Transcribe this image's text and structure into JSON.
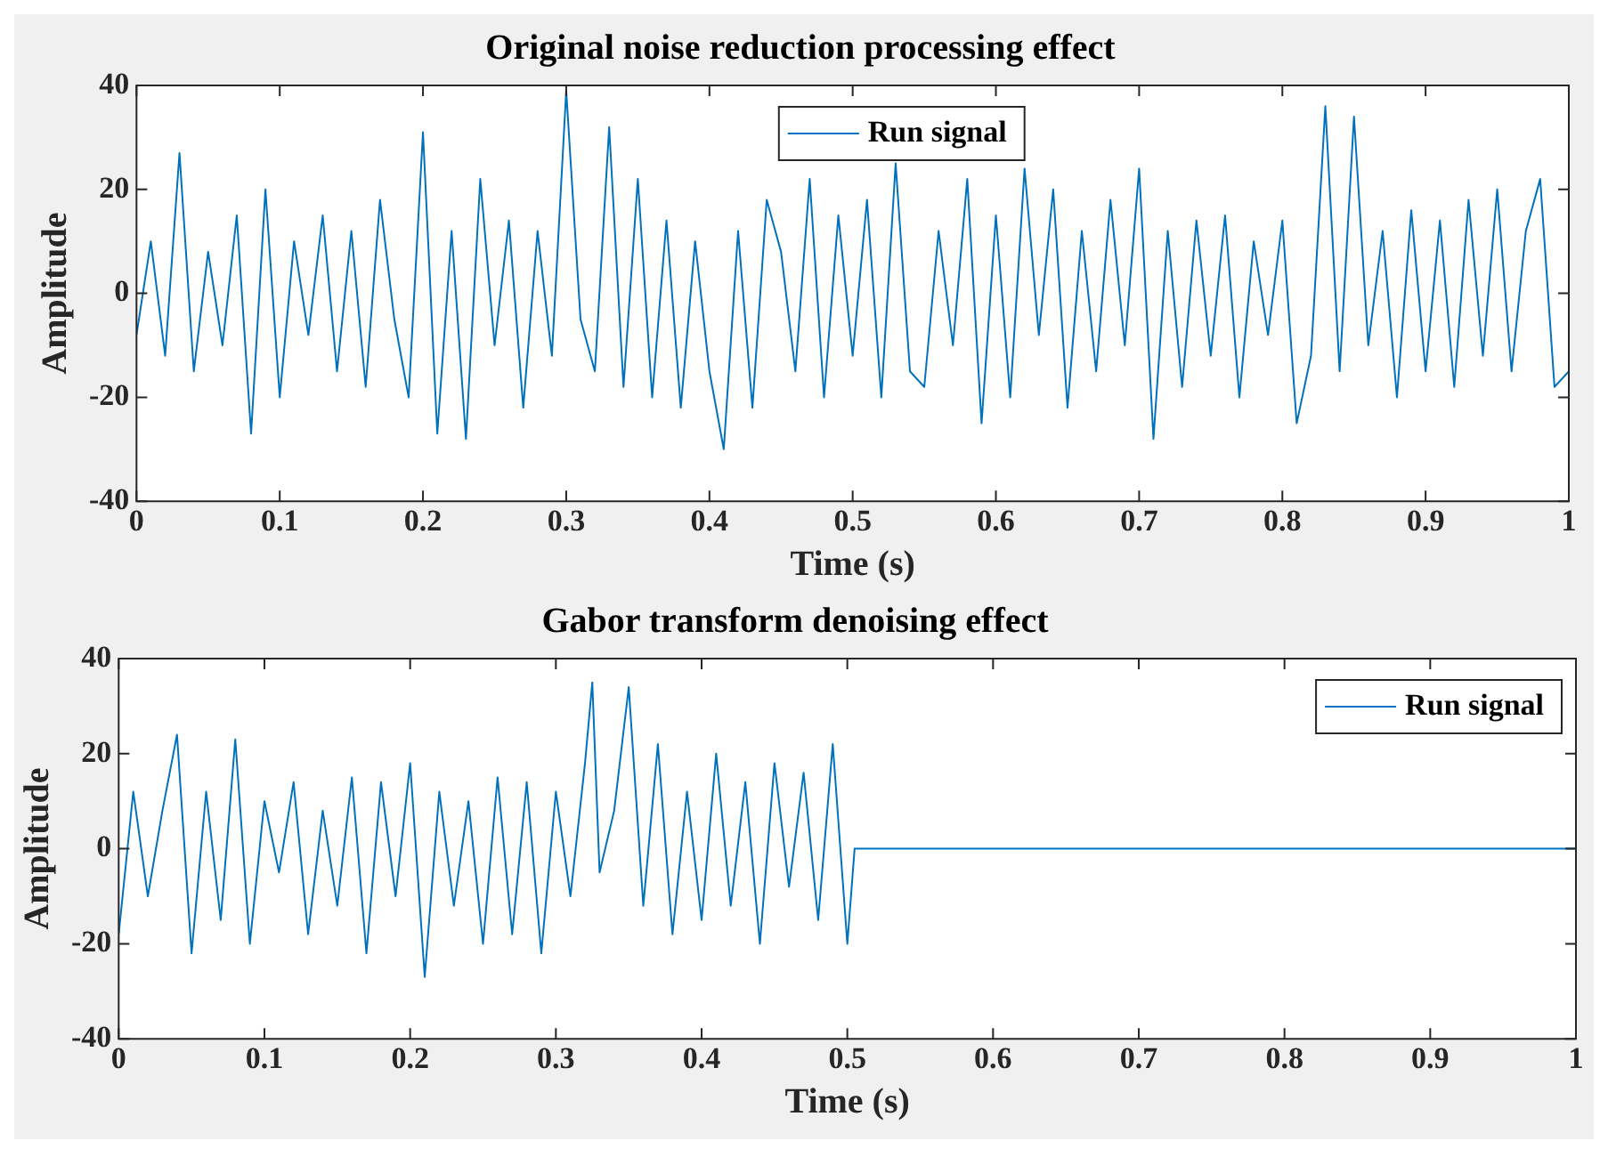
{
  "chart_data": [
    {
      "type": "line",
      "title": "Original noise reduction processing effect",
      "xlabel": "Time (s)",
      "ylabel": "Amplitude",
      "legend": "top right",
      "xlim": [
        0,
        1
      ],
      "ylim": [
        -40,
        40
      ],
      "xticks": [
        0,
        0.1,
        0.2,
        0.3,
        0.4,
        0.5,
        0.6,
        0.7,
        0.8,
        0.9,
        1
      ],
      "yticks": [
        -40,
        -20,
        0,
        20,
        40
      ],
      "x": [
        0,
        0.01,
        0.02,
        0.03,
        0.04,
        0.05,
        0.06,
        0.07,
        0.08,
        0.09,
        0.1,
        0.11,
        0.12,
        0.13,
        0.14,
        0.15,
        0.16,
        0.17,
        0.18,
        0.19,
        0.2,
        0.21,
        0.22,
        0.23,
        0.24,
        0.25,
        0.26,
        0.27,
        0.28,
        0.29,
        0.3,
        0.31,
        0.32,
        0.33,
        0.34,
        0.35,
        0.36,
        0.37,
        0.38,
        0.39,
        0.4,
        0.41,
        0.42,
        0.43,
        0.44,
        0.45,
        0.46,
        0.47,
        0.48,
        0.49,
        0.5,
        0.51,
        0.52,
        0.53,
        0.54,
        0.55,
        0.56,
        0.57,
        0.58,
        0.59,
        0.6,
        0.61,
        0.62,
        0.63,
        0.64,
        0.65,
        0.66,
        0.67,
        0.68,
        0.69,
        0.7,
        0.71,
        0.72,
        0.73,
        0.74,
        0.75,
        0.76,
        0.77,
        0.78,
        0.79,
        0.8,
        0.81,
        0.82,
        0.83,
        0.84,
        0.85,
        0.86,
        0.87,
        0.88,
        0.89,
        0.9,
        0.91,
        0.92,
        0.93,
        0.94,
        0.95,
        0.96,
        0.97,
        0.98,
        0.99,
        1
      ],
      "series": [
        {
          "name": "Run signal",
          "color": "#0072bd",
          "values": [
            -8,
            10,
            -12,
            27,
            -15,
            8,
            -10,
            15,
            -27,
            20,
            -20,
            10,
            -8,
            15,
            -15,
            12,
            -18,
            18,
            -5,
            -20,
            31,
            -27,
            12,
            -28,
            22,
            -10,
            14,
            -22,
            12,
            -12,
            39,
            -5,
            -15,
            32,
            -18,
            22,
            -20,
            14,
            -22,
            10,
            -15,
            -30,
            12,
            -22,
            18,
            8,
            -15,
            22,
            -20,
            15,
            -12,
            18,
            -20,
            25,
            -15,
            -18,
            12,
            -10,
            22,
            -25,
            15,
            -20,
            24,
            -8,
            20,
            -22,
            12,
            -15,
            18,
            -10,
            24,
            -28,
            12,
            -18,
            14,
            -12,
            15,
            -20,
            10,
            -8,
            14,
            -25,
            -12,
            36,
            -15,
            34,
            -10,
            12,
            -20,
            16,
            -15,
            14,
            -18,
            18,
            -12,
            20,
            -15,
            12,
            22,
            -18,
            -15
          ]
        }
      ]
    },
    {
      "type": "line",
      "title": "Gabor transform denoising effect",
      "xlabel": "Time (s)",
      "ylabel": "Amplitude",
      "legend": "top right",
      "xlim": [
        0,
        1
      ],
      "ylim": [
        -40,
        40
      ],
      "xticks": [
        0,
        0.1,
        0.2,
        0.3,
        0.4,
        0.5,
        0.6,
        0.7,
        0.8,
        0.9,
        1
      ],
      "yticks": [
        -40,
        -20,
        0,
        20,
        40
      ],
      "x": [
        0,
        0.01,
        0.02,
        0.03,
        0.04,
        0.05,
        0.06,
        0.07,
        0.08,
        0.09,
        0.1,
        0.11,
        0.12,
        0.13,
        0.14,
        0.15,
        0.16,
        0.17,
        0.18,
        0.19,
        0.2,
        0.21,
        0.22,
        0.23,
        0.24,
        0.25,
        0.26,
        0.27,
        0.28,
        0.29,
        0.3,
        0.31,
        0.32,
        0.325,
        0.33,
        0.34,
        0.35,
        0.36,
        0.37,
        0.38,
        0.39,
        0.4,
        0.41,
        0.42,
        0.43,
        0.44,
        0.45,
        0.46,
        0.47,
        0.48,
        0.49,
        0.5,
        0.505,
        1
      ],
      "series": [
        {
          "name": "Run signal",
          "color": "#0072bd",
          "values": [
            -18,
            12,
            -10,
            8,
            24,
            -22,
            12,
            -15,
            23,
            -20,
            10,
            -5,
            14,
            -18,
            8,
            -12,
            15,
            -22,
            14,
            -10,
            18,
            -27,
            12,
            -12,
            10,
            -20,
            15,
            -18,
            14,
            -22,
            12,
            -10,
            18,
            35,
            -5,
            8,
            34,
            -12,
            22,
            -18,
            12,
            -15,
            20,
            -12,
            14,
            -20,
            18,
            -8,
            16,
            -15,
            22,
            -20,
            0,
            0
          ]
        }
      ]
    }
  ]
}
